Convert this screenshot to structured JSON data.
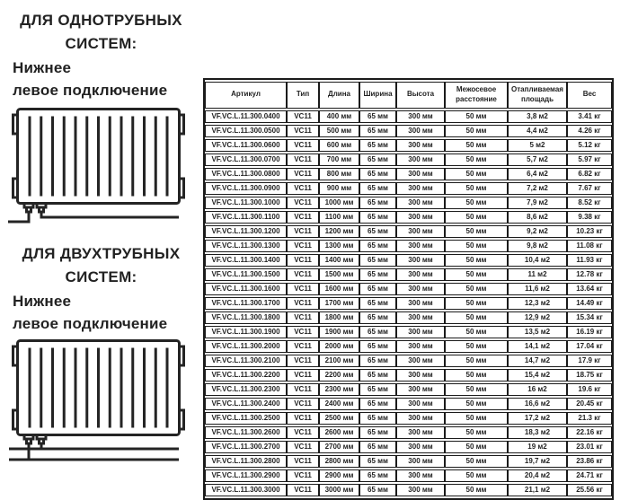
{
  "page": {
    "background_color": "#ffffff",
    "text_color": "#222222",
    "border_color": "#1b1b1b"
  },
  "sections": [
    {
      "title": "ДЛЯ ОДНОТРУБНЫХ\nСИСТЕМ:",
      "subtitle": "Нижнее\nлевое подключение",
      "diagram": "radiator-bottom-left-single-pipe"
    },
    {
      "title": "ДЛЯ ДВУХТРУБНЫХ\nСИСТЕМ:",
      "subtitle": "Нижнее\nлевое подключение",
      "diagram": "radiator-bottom-left-two-pipe"
    }
  ],
  "table": {
    "headers": [
      "Артикул",
      "Тип",
      "Длина",
      "Ширина",
      "Высота",
      "Межосевое расстояние",
      "Отапливаемая площадь",
      "Вес"
    ],
    "rows": [
      [
        "VF.VC.L.11.300.0400",
        "VC11",
        "400 мм",
        "65 мм",
        "300 мм",
        "50 мм",
        "3,8 м2",
        "3.41 кг"
      ],
      [
        "VF.VC.L.11.300.0500",
        "VC11",
        "500 мм",
        "65 мм",
        "300 мм",
        "50 мм",
        "4,4 м2",
        "4.26 кг"
      ],
      [
        "VF.VC.L.11.300.0600",
        "VC11",
        "600 мм",
        "65 мм",
        "300 мм",
        "50 мм",
        "5 м2",
        "5.12 кг"
      ],
      [
        "VF.VC.L.11.300.0700",
        "VC11",
        "700 мм",
        "65 мм",
        "300 мм",
        "50 мм",
        "5,7 м2",
        "5.97 кг"
      ],
      [
        "VF.VC.L.11.300.0800",
        "VC11",
        "800 мм",
        "65 мм",
        "300 мм",
        "50 мм",
        "6,4 м2",
        "6.82 кг"
      ],
      [
        "VF.VC.L.11.300.0900",
        "VC11",
        "900 мм",
        "65 мм",
        "300 мм",
        "50 мм",
        "7,2 м2",
        "7.67 кг"
      ],
      [
        "VF.VC.L.11.300.1000",
        "VC11",
        "1000 мм",
        "65 мм",
        "300 мм",
        "50 мм",
        "7,9 м2",
        "8.52 кг"
      ],
      [
        "VF.VC.L.11.300.1100",
        "VC11",
        "1100 мм",
        "65 мм",
        "300 мм",
        "50 мм",
        "8,6 м2",
        "9.38 кг"
      ],
      [
        "VF.VC.L.11.300.1200",
        "VC11",
        "1200 мм",
        "65 мм",
        "300 мм",
        "50 мм",
        "9,2 м2",
        "10.23 кг"
      ],
      [
        "VF.VC.L.11.300.1300",
        "VC11",
        "1300 мм",
        "65 мм",
        "300 мм",
        "50 мм",
        "9,8 м2",
        "11.08 кг"
      ],
      [
        "VF.VC.L.11.300.1400",
        "VC11",
        "1400 мм",
        "65 мм",
        "300 мм",
        "50 мм",
        "10,4 м2",
        "11.93 кг"
      ],
      [
        "VF.VC.L.11.300.1500",
        "VC11",
        "1500 мм",
        "65 мм",
        "300 мм",
        "50 мм",
        "11 м2",
        "12.78 кг"
      ],
      [
        "VF.VC.L.11.300.1600",
        "VC11",
        "1600 мм",
        "65 мм",
        "300 мм",
        "50 мм",
        "11,6 м2",
        "13.64 кг"
      ],
      [
        "VF.VC.L.11.300.1700",
        "VC11",
        "1700 мм",
        "65 мм",
        "300 мм",
        "50 мм",
        "12,3 м2",
        "14.49 кг"
      ],
      [
        "VF.VC.L.11.300.1800",
        "VC11",
        "1800 мм",
        "65 мм",
        "300 мм",
        "50 мм",
        "12,9 м2",
        "15.34 кг"
      ],
      [
        "VF.VC.L.11.300.1900",
        "VC11",
        "1900 мм",
        "65 мм",
        "300 мм",
        "50 мм",
        "13,5 м2",
        "16.19 кг"
      ],
      [
        "VF.VC.L.11.300.2000",
        "VC11",
        "2000 мм",
        "65 мм",
        "300 мм",
        "50 мм",
        "14,1 м2",
        "17.04 кг"
      ],
      [
        "VF.VC.L.11.300.2100",
        "VC11",
        "2100 мм",
        "65 мм",
        "300 мм",
        "50 мм",
        "14,7 м2",
        "17.9 кг"
      ],
      [
        "VF.VC.L.11.300.2200",
        "VC11",
        "2200 мм",
        "65 мм",
        "300 мм",
        "50 мм",
        "15,4 м2",
        "18.75 кг"
      ],
      [
        "VF.VC.L.11.300.2300",
        "VC11",
        "2300 мм",
        "65 мм",
        "300 мм",
        "50 мм",
        "16 м2",
        "19.6 кг"
      ],
      [
        "VF.VC.L.11.300.2400",
        "VC11",
        "2400 мм",
        "65 мм",
        "300 мм",
        "50 мм",
        "16,6 м2",
        "20.45 кг"
      ],
      [
        "VF.VC.L.11.300.2500",
        "VC11",
        "2500 мм",
        "65 мм",
        "300 мм",
        "50 мм",
        "17,2 м2",
        "21.3 кг"
      ],
      [
        "VF.VC.L.11.300.2600",
        "VC11",
        "2600 мм",
        "65 мм",
        "300 мм",
        "50 мм",
        "18,3 м2",
        "22.16 кг"
      ],
      [
        "VF.VC.L.11.300.2700",
        "VC11",
        "2700 мм",
        "65 мм",
        "300 мм",
        "50 мм",
        "19 м2",
        "23.01 кг"
      ],
      [
        "VF.VC.L.11.300.2800",
        "VC11",
        "2800 мм",
        "65 мм",
        "300 мм",
        "50 мм",
        "19,7 м2",
        "23.86 кг"
      ],
      [
        "VF.VC.L.11.300.2900",
        "VC11",
        "2900 мм",
        "65 мм",
        "300 мм",
        "50 мм",
        "20,4 м2",
        "24.71 кг"
      ],
      [
        "VF.VC.L.11.300.3000",
        "VC11",
        "3000 мм",
        "65 мм",
        "300 мм",
        "50 мм",
        "21,1 м2",
        "25.56 кг"
      ]
    ]
  }
}
